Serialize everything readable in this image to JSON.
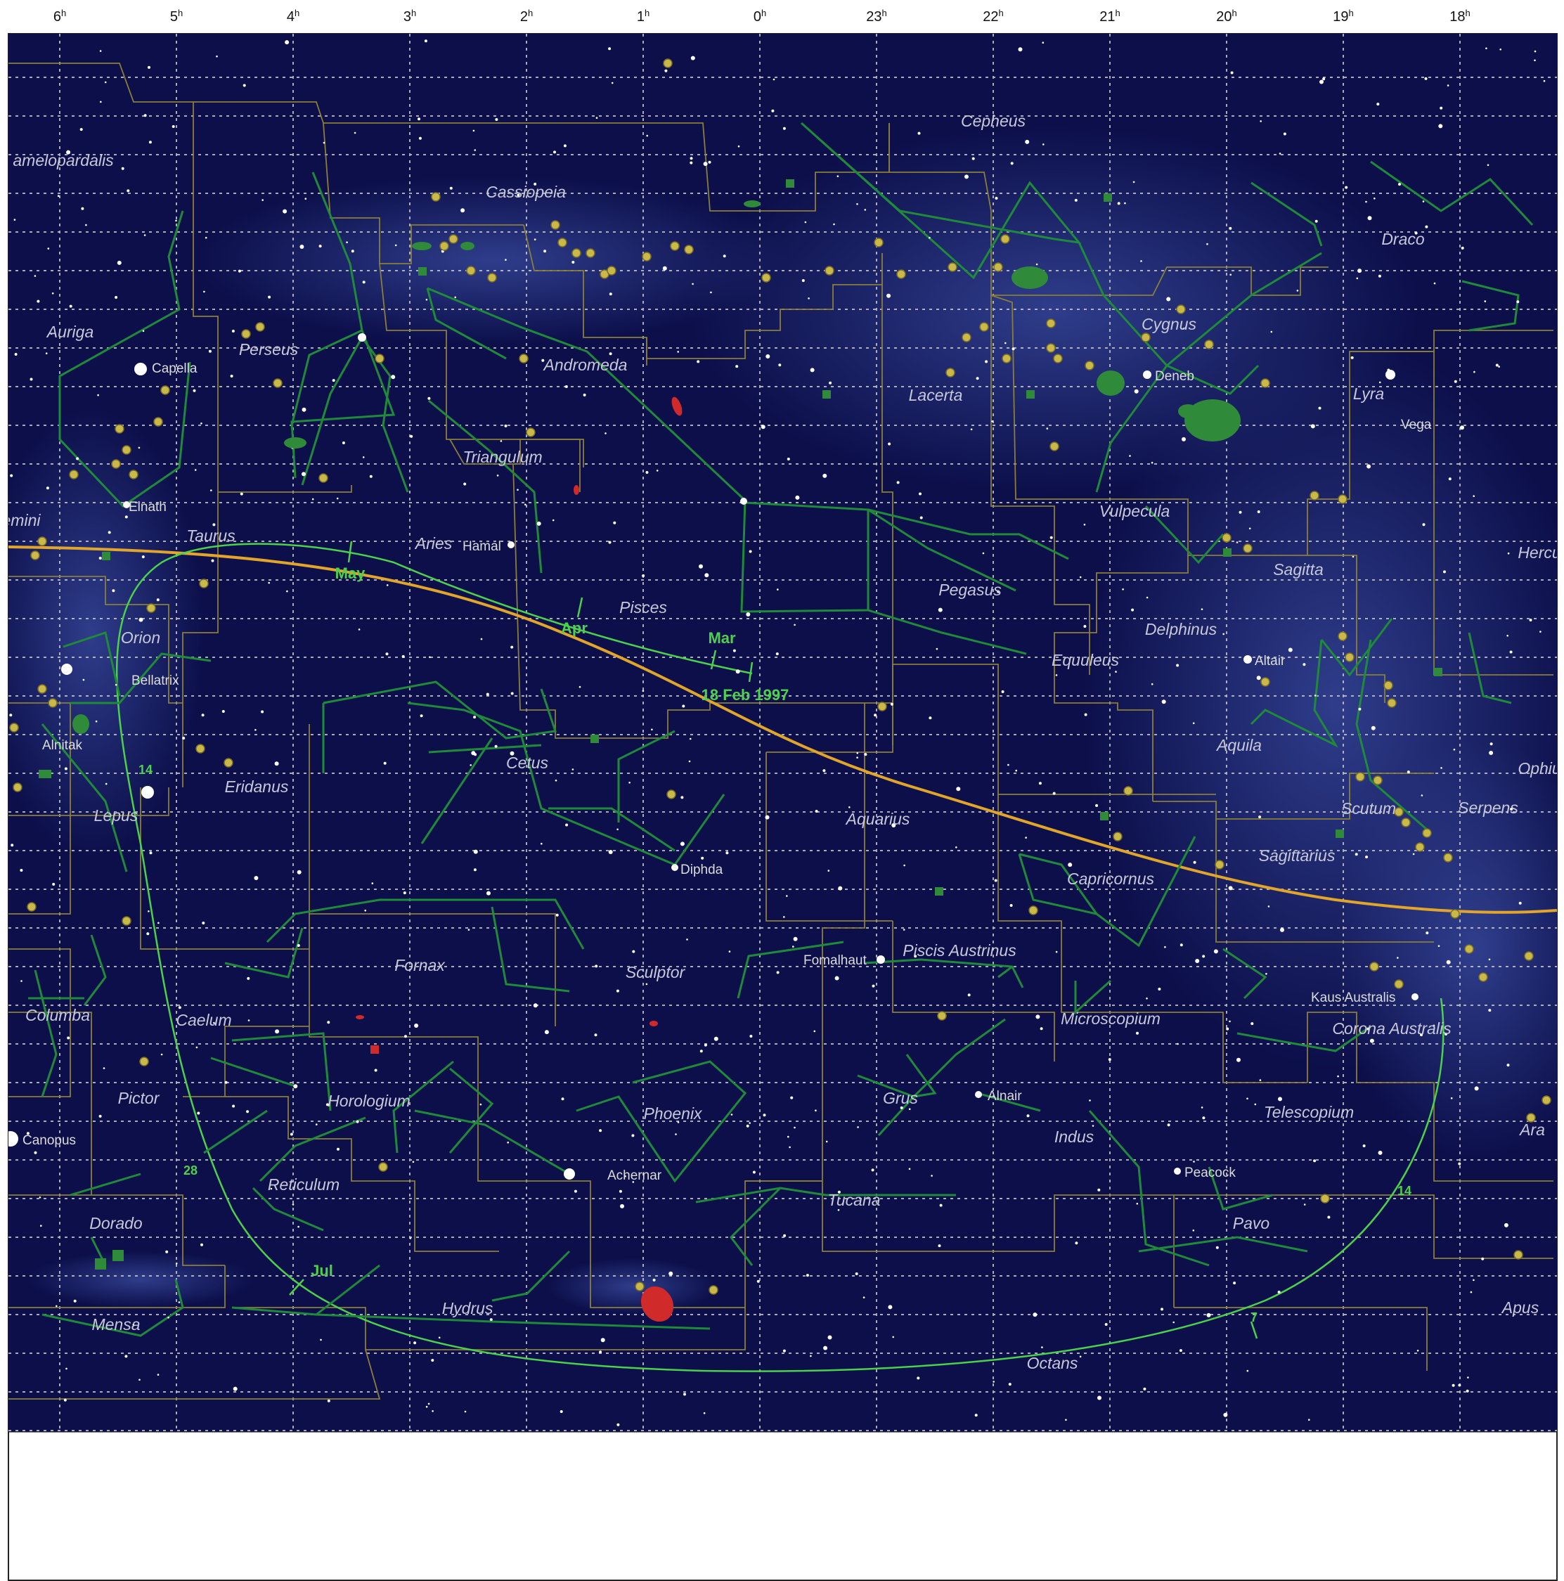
{
  "colors": {
    "sky_background": "#0c0f4a",
    "milky_way": "#2a3a8a",
    "grid": "#c8c8c8",
    "constellation_lines": "#1f8a3a",
    "boundaries": "#8a7e3a",
    "ecliptic": "#e0a52a",
    "comet_path": "#4cd14c",
    "stars": "#ffffff",
    "clusters": "#c9b94a",
    "nebulae": "#2f8a3a",
    "galaxies": "#d02a2a"
  },
  "ra_axis": {
    "labels": [
      {
        "h": "6",
        "sup": "h"
      },
      {
        "h": "5",
        "sup": "h"
      },
      {
        "h": "4",
        "sup": "h"
      },
      {
        "h": "3",
        "sup": "h"
      },
      {
        "h": "2",
        "sup": "h"
      },
      {
        "h": "1",
        "sup": "h"
      },
      {
        "h": "0",
        "sup": "h"
      },
      {
        "h": "23",
        "sup": "h"
      },
      {
        "h": "22",
        "sup": "h"
      },
      {
        "h": "21",
        "sup": "h"
      },
      {
        "h": "20",
        "sup": "h"
      },
      {
        "h": "19",
        "sup": "h"
      },
      {
        "h": "18",
        "sup": "h"
      }
    ]
  },
  "constellations": [
    "amelopardalis",
    "Cassiopeia",
    "Cepheus",
    "Draco",
    "Auriga",
    "Perseus",
    "Andromeda",
    "Lacerta",
    "Cygnus",
    "Lyra",
    "Triangulum",
    "Vulpecula",
    "emini",
    "Taurus",
    "Aries",
    "Pisces",
    "Pegasus",
    "Sagitta",
    "Hercu",
    "Orion",
    "Delphinus",
    "Equuleus",
    "Cetus",
    "Aquila",
    "Eridanus",
    "Aquarius",
    "Ophiu",
    "Scutum",
    "Serpens",
    "Lepus",
    "Sagittarius",
    "Capricornus",
    "Fornax",
    "Sculptor",
    "Piscis Austrinus",
    "Columba",
    "Caelum",
    "Microscopium",
    "Corona Australis",
    "Pictor",
    "Horologium",
    "Phoenix",
    "Grus",
    "Telescopium",
    "Indus",
    "Ara",
    "Reticulum",
    "Tucana",
    "Pavo",
    "Dorado",
    "Hydrus",
    "Apus",
    "Mensa",
    "Octans"
  ],
  "named_stars": [
    "Capella",
    "Deneb",
    "Vega",
    "Elnath",
    "Hamal",
    "Bellatrix",
    "Altair",
    "Alnitak",
    "Diphda",
    "Fomalhaut",
    "Kaus Australis",
    "Alnair",
    "Canopus",
    "Achernar",
    "Peacock"
  ],
  "comet_path_labels": [
    "May",
    "Apr",
    "Mar",
    "18 Feb 1997",
    "Jul"
  ],
  "path_ticks": [
    "14",
    "28",
    "14",
    "7"
  ]
}
